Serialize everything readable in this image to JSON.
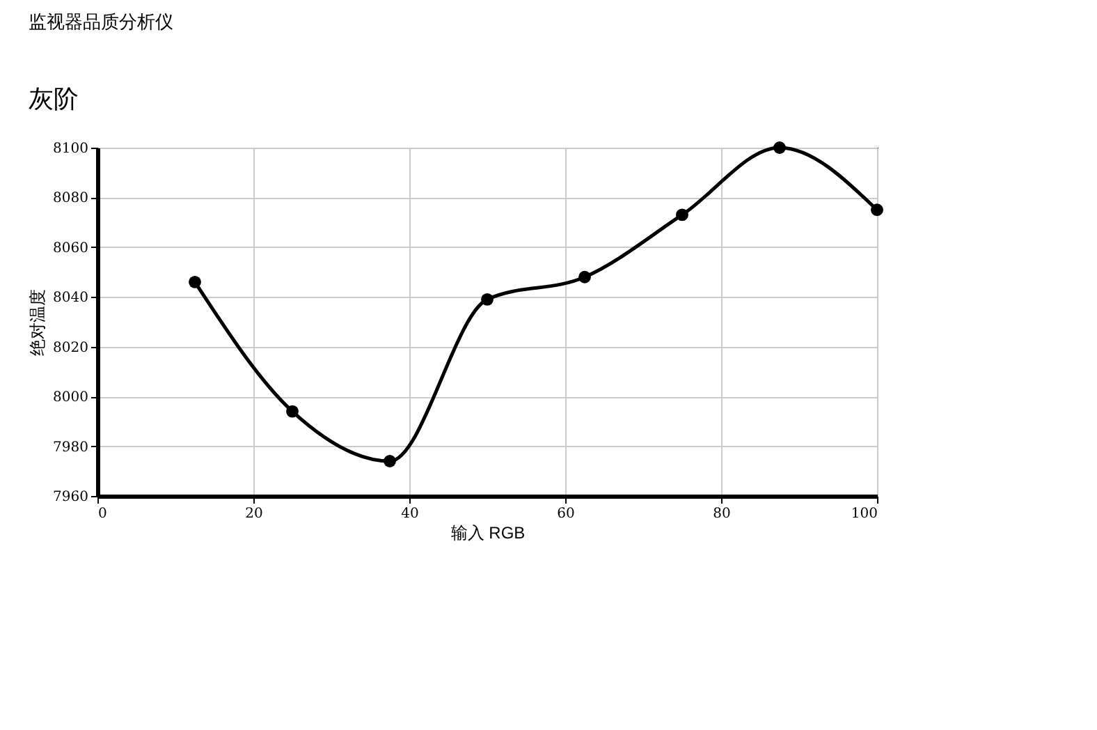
{
  "chart_data": {
    "type": "line",
    "title": "监视器品质分析仪",
    "subtitle": "灰阶",
    "xlabel": "输入 RGB",
    "ylabel": "绝对温度",
    "x": [
      12.5,
      25,
      37.5,
      50,
      62.5,
      75,
      87.5,
      100
    ],
    "series": [
      {
        "color": "#000000",
        "values": [
          8046,
          7994,
          7974,
          8039,
          8048,
          8073,
          8100,
          8075
        ]
      }
    ],
    "xlim": [
      0,
      100
    ],
    "xticks": [
      0,
      20,
      40,
      60,
      80,
      100
    ],
    "ylim": [
      7960,
      8100
    ],
    "yticks": [
      7960,
      7980,
      8000,
      8020,
      8040,
      8060,
      8080,
      8100
    ],
    "grid": true,
    "marker": "circle",
    "line_style": "solid",
    "legend": false
  }
}
